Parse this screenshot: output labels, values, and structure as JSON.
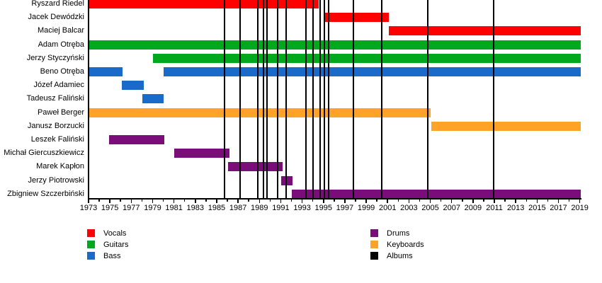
{
  "chart_data": {
    "type": "bar",
    "subtype": "member-timeline-gantt",
    "title": "",
    "xlabel": "",
    "ylabel": "",
    "x_axis": {
      "start": 1973,
      "end": 2019,
      "major_tick_step": 2,
      "minor_tick_step": 1,
      "tick_labels": [
        "1973",
        "1975",
        "1977",
        "1979",
        "1981",
        "1983",
        "1985",
        "1987",
        "1989",
        "1991",
        "1993",
        "1995",
        "1997",
        "1999",
        "2001",
        "2003",
        "2005",
        "2007",
        "2009",
        "2011",
        "2013",
        "2015",
        "2017",
        "2019"
      ]
    },
    "rows": [
      {
        "name": "Ryszard Riedel",
        "role": "vocals",
        "spans": [
          [
            1973,
            1994.55
          ]
        ]
      },
      {
        "name": "Jacek Dewódzki",
        "role": "vocals",
        "spans": [
          [
            1995.15,
            2001.15
          ]
        ]
      },
      {
        "name": "Maciej Balcar",
        "role": "vocals",
        "spans": [
          [
            2001.1,
            2019.1
          ]
        ]
      },
      {
        "name": "Adam Otręba",
        "role": "guitars",
        "spans": [
          [
            1973,
            2019.1
          ]
        ]
      },
      {
        "name": "Jerzy Styczyński",
        "role": "guitars",
        "spans": [
          [
            1979.05,
            2019.1
          ]
        ]
      },
      {
        "name": "Beno Otręba",
        "role": "bass",
        "spans": [
          [
            1973,
            1976.2
          ],
          [
            1980.05,
            2019.1
          ]
        ]
      },
      {
        "name": "Józef Adamiec",
        "role": "bass",
        "spans": [
          [
            1976.1,
            1978.2
          ]
        ]
      },
      {
        "name": "Tadeusz Faliński",
        "role": "bass",
        "spans": [
          [
            1978.05,
            1980.05
          ]
        ]
      },
      {
        "name": "Paweł Berger",
        "role": "keyboards",
        "spans": [
          [
            1973,
            2005.05
          ]
        ]
      },
      {
        "name": "Janusz Borzucki",
        "role": "keyboards",
        "spans": [
          [
            2005.1,
            2019.1
          ]
        ]
      },
      {
        "name": "Leszek Faliński",
        "role": "drums",
        "spans": [
          [
            1974.95,
            1980.1
          ]
        ]
      },
      {
        "name": "Michał Giercuszkiewicz",
        "role": "drums",
        "spans": [
          [
            1981,
            1986.2
          ]
        ]
      },
      {
        "name": "Marek Kapłon",
        "role": "drums",
        "spans": [
          [
            1986.05,
            1991.15
          ]
        ]
      },
      {
        "name": "Jerzy Piotrowski",
        "role": "drums",
        "spans": [
          [
            1991.05,
            1992.1
          ]
        ]
      },
      {
        "name": "Zbigniew Szczerbiński",
        "role": "drums",
        "spans": [
          [
            1992.05,
            2019.1
          ]
        ]
      }
    ],
    "album_lines_years": [
      1985.75,
      1987.2,
      1988.85,
      1989.4,
      1989.7,
      1990.7,
      1991.5,
      1993.35,
      1994.0,
      1994.7,
      1995.1,
      1995.45,
      1997.8,
      2000.45,
      2004.75,
      2010.95
    ],
    "colors": {
      "vocals": "#FF0000",
      "guitars": "#00A81D",
      "bass": "#1A6BC9",
      "drums": "#7A0D7A",
      "keyboards": "#FFA228",
      "albums": "#000000"
    },
    "legend": [
      {
        "key": "vocals",
        "label": "Vocals"
      },
      {
        "key": "guitars",
        "label": "Guitars"
      },
      {
        "key": "bass",
        "label": "Bass"
      },
      {
        "key": "drums",
        "label": "Drums"
      },
      {
        "key": "keyboards",
        "label": "Keyboards"
      },
      {
        "key": "albums",
        "label": "Albums"
      }
    ],
    "legend_position": "bottom",
    "grid": false
  }
}
